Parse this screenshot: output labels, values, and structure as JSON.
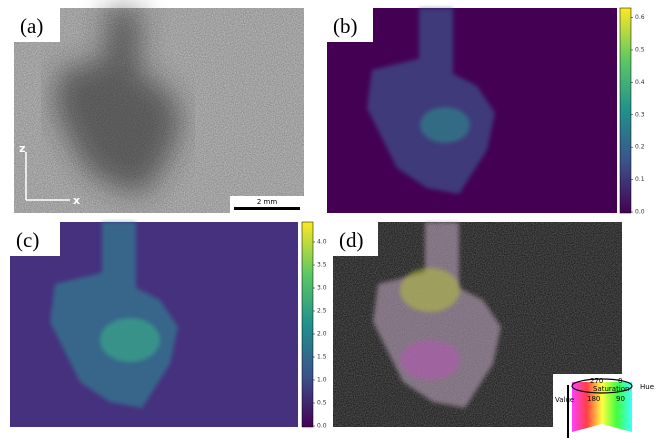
{
  "panels": {
    "a": {
      "label": "(a)",
      "axis_z": "z",
      "axis_x": "x",
      "scale_bar": "2 mm"
    },
    "b": {
      "label": "(b)",
      "colorbar_ticks": [
        "0.0",
        "0.1",
        "0.2",
        "0.3",
        "0.4",
        "0.5",
        "0.6"
      ]
    },
    "c": {
      "label": "(c)",
      "colorbar_ticks": [
        "0.0",
        "0.5",
        "1.0",
        "1.5",
        "2.0",
        "2.5",
        "3.0",
        "3.5",
        "4.0"
      ]
    },
    "d": {
      "label": "(d)",
      "wheel": {
        "hue_labels": [
          "270",
          "0",
          "180",
          "90"
        ],
        "hue": "Hue",
        "saturation": "Saturation",
        "value": "Value"
      }
    }
  }
}
